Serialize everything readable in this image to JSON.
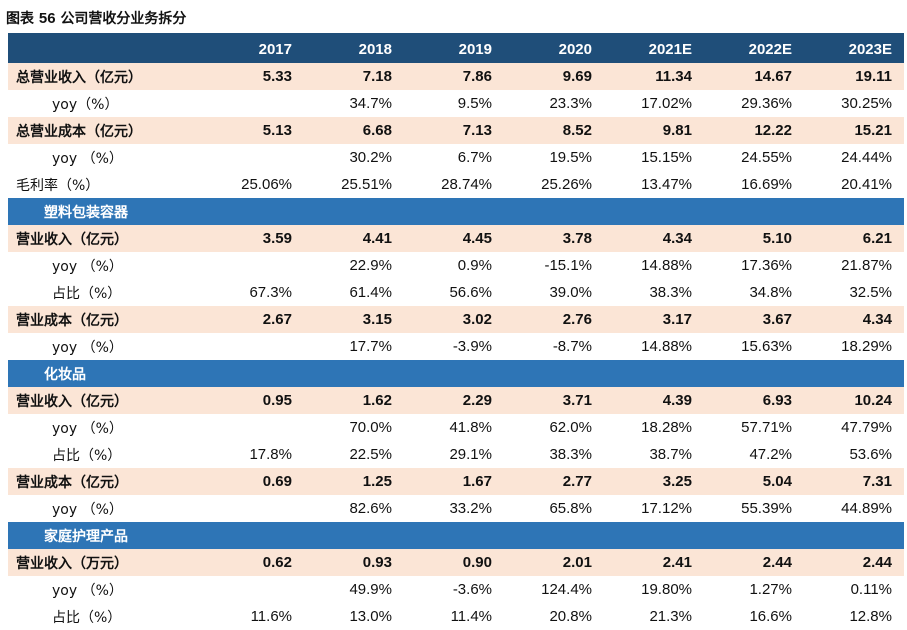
{
  "title": {
    "prefix": "图表",
    "number": "56",
    "text": "公司营收分业务拆分"
  },
  "header": {
    "years": [
      "2017",
      "2018",
      "2019",
      "2020",
      "2021E",
      "2022E",
      "2023E"
    ]
  },
  "rows": [
    {
      "type": "main",
      "label": "总营业收入（亿元）",
      "values": [
        "5.33",
        "7.18",
        "7.86",
        "9.69",
        "11.34",
        "14.67",
        "19.11"
      ]
    },
    {
      "type": "plain",
      "label": "yoy（%）",
      "indent": true,
      "values": [
        "",
        "34.7%",
        "9.5%",
        "23.3%",
        "17.02%",
        "29.36%",
        "30.25%"
      ]
    },
    {
      "type": "main",
      "label": "总营业成本（亿元）",
      "values": [
        "5.13",
        "6.68",
        "7.13",
        "8.52",
        "9.81",
        "12.22",
        "15.21"
      ]
    },
    {
      "type": "plain",
      "label": "yoy （%）",
      "indent": true,
      "values": [
        "",
        "30.2%",
        "6.7%",
        "19.5%",
        "15.15%",
        "24.55%",
        "24.44%"
      ]
    },
    {
      "type": "plain",
      "label": "毛利率（%）",
      "indent": false,
      "values": [
        "25.06%",
        "25.51%",
        "28.74%",
        "25.26%",
        "13.47%",
        "16.69%",
        "20.41%"
      ]
    },
    {
      "type": "sec",
      "label": "塑料包装容器"
    },
    {
      "type": "main",
      "label": "营业收入（亿元）",
      "values": [
        "3.59",
        "4.41",
        "4.45",
        "3.78",
        "4.34",
        "5.10",
        "6.21"
      ]
    },
    {
      "type": "plain",
      "label": "yoy （%）",
      "indent": true,
      "values": [
        "",
        "22.9%",
        "0.9%",
        "-15.1%",
        "14.88%",
        "17.36%",
        "21.87%"
      ]
    },
    {
      "type": "plain",
      "label": "占比（%）",
      "indent": true,
      "values": [
        "67.3%",
        "61.4%",
        "56.6%",
        "39.0%",
        "38.3%",
        "34.8%",
        "32.5%"
      ]
    },
    {
      "type": "main",
      "label": "营业成本（亿元）",
      "values": [
        "2.67",
        "3.15",
        "3.02",
        "2.76",
        "3.17",
        "3.67",
        "4.34"
      ]
    },
    {
      "type": "plain",
      "label": "yoy （%）",
      "indent": true,
      "values": [
        "",
        "17.7%",
        "-3.9%",
        "-8.7%",
        "14.88%",
        "15.63%",
        "18.29%"
      ]
    },
    {
      "type": "sec",
      "label": "化妆品"
    },
    {
      "type": "main",
      "label": "营业收入（亿元）",
      "values": [
        "0.95",
        "1.62",
        "2.29",
        "3.71",
        "4.39",
        "6.93",
        "10.24"
      ]
    },
    {
      "type": "plain",
      "label": "yoy （%）",
      "indent": true,
      "values": [
        "",
        "70.0%",
        "41.8%",
        "62.0%",
        "18.28%",
        "57.71%",
        "47.79%"
      ]
    },
    {
      "type": "plain",
      "label": "占比（%）",
      "indent": true,
      "values": [
        "17.8%",
        "22.5%",
        "29.1%",
        "38.3%",
        "38.7%",
        "47.2%",
        "53.6%"
      ]
    },
    {
      "type": "main",
      "label": "营业成本（亿元）",
      "values": [
        "0.69",
        "1.25",
        "1.67",
        "2.77",
        "3.25",
        "5.04",
        "7.31"
      ]
    },
    {
      "type": "plain",
      "label": "yoy （%）",
      "indent": true,
      "values": [
        "",
        "82.6%",
        "33.2%",
        "65.8%",
        "17.12%",
        "55.39%",
        "44.89%"
      ]
    },
    {
      "type": "sec",
      "label": "家庭护理产品"
    },
    {
      "type": "main",
      "label": "营业收入（万元）",
      "values": [
        "0.62",
        "0.93",
        "0.90",
        "2.01",
        "2.41",
        "2.44",
        "2.44"
      ]
    },
    {
      "type": "plain",
      "label": "yoy （%）",
      "indent": true,
      "values": [
        "",
        "49.9%",
        "-3.6%",
        "124.4%",
        "19.80%",
        "1.27%",
        "0.11%"
      ]
    },
    {
      "type": "plain",
      "label": "占比（%）",
      "indent": true,
      "values": [
        "11.6%",
        "13.0%",
        "11.4%",
        "20.8%",
        "21.3%",
        "16.6%",
        "12.8%"
      ]
    }
  ],
  "colors": {
    "header_bg": "#1f4e79",
    "section_bg": "#2e75b6",
    "highlight_bg": "#fbe5d6",
    "text": "#111111"
  }
}
